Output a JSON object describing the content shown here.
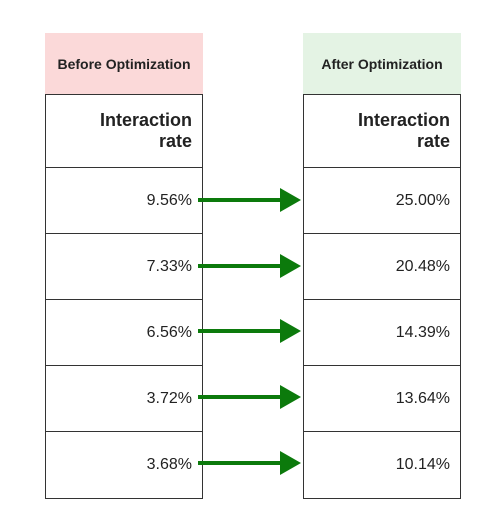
{
  "before": {
    "header": "Before Optimization",
    "metric_label": "Interaction\nrate",
    "values": [
      "9.56%",
      "7.33%",
      "6.56%",
      "3.72%",
      "3.68%"
    ]
  },
  "after": {
    "header": "After Optimization",
    "metric_label": "Interaction\nrate",
    "values": [
      "25.00%",
      "20.48%",
      "14.39%",
      "13.64%",
      "10.14%"
    ]
  },
  "colors": {
    "before_header_bg": "#fbd9d9",
    "after_header_bg": "#e4f3e4",
    "arrow": "#0c7a0c",
    "border": "#333333"
  },
  "icons": [
    "arrow-right-icon"
  ]
}
